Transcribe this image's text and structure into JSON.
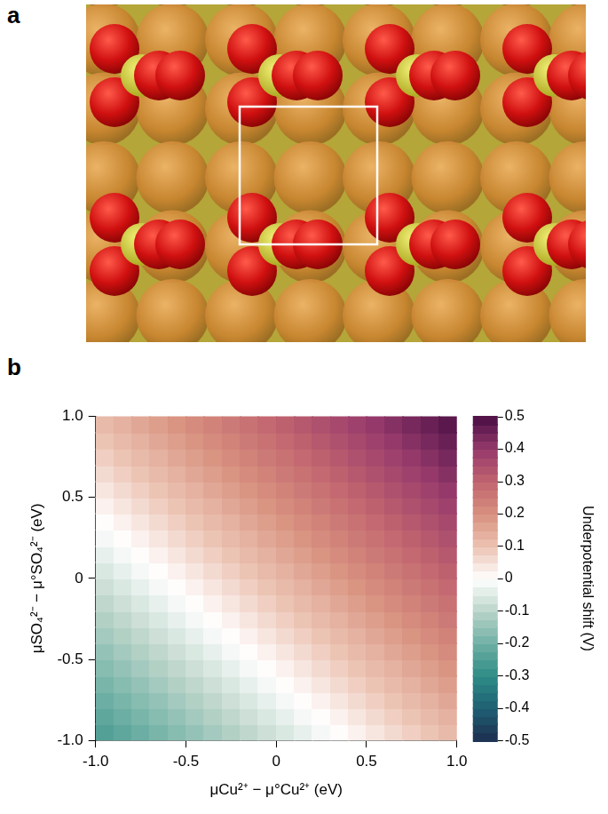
{
  "panel_labels": [
    "a",
    "b"
  ],
  "chart_data": {
    "type": "heatmap",
    "x_label": "μCu²⁺ − μ°Cu²⁺ (eV)",
    "y_label": "μSO₄²⁻ − μ°SO₄²⁻ (eV)",
    "x": [
      -0.95,
      -0.85,
      -0.75,
      -0.65,
      -0.55,
      -0.45,
      -0.35,
      -0.25,
      -0.15,
      -0.05,
      0.05,
      0.15,
      0.25,
      0.35,
      0.45,
      0.55,
      0.65,
      0.75,
      0.85,
      0.95
    ],
    "y": [
      -0.95,
      -0.85,
      -0.75,
      -0.65,
      -0.55,
      -0.45,
      -0.35,
      -0.25,
      -0.15,
      -0.05,
      0.05,
      0.15,
      0.25,
      0.35,
      0.45,
      0.55,
      0.65,
      0.75,
      0.85,
      0.95
    ],
    "cells": [
      [
        -0.243,
        -0.224,
        -0.205,
        -0.186,
        -0.167,
        -0.148,
        -0.129,
        -0.11,
        -0.091,
        -0.072,
        -0.053,
        -0.034,
        -0.015,
        0.004,
        0.023,
        0.042,
        0.061,
        0.08,
        0.099,
        0.118
      ],
      [
        -0.224,
        -0.205,
        -0.186,
        -0.167,
        -0.148,
        -0.129,
        -0.11,
        -0.091,
        -0.072,
        -0.053,
        -0.034,
        -0.015,
        0.004,
        0.023,
        0.042,
        0.061,
        0.08,
        0.099,
        0.118,
        0.137
      ],
      [
        -0.205,
        -0.186,
        -0.167,
        -0.148,
        -0.129,
        -0.11,
        -0.091,
        -0.072,
        -0.053,
        -0.034,
        -0.015,
        0.004,
        0.023,
        0.042,
        0.061,
        0.08,
        0.099,
        0.118,
        0.137,
        0.156
      ],
      [
        -0.186,
        -0.167,
        -0.148,
        -0.129,
        -0.11,
        -0.091,
        -0.072,
        -0.053,
        -0.034,
        -0.015,
        0.004,
        0.023,
        0.042,
        0.061,
        0.08,
        0.099,
        0.118,
        0.137,
        0.156,
        0.175
      ],
      [
        -0.167,
        -0.148,
        -0.129,
        -0.11,
        -0.091,
        -0.072,
        -0.053,
        -0.034,
        -0.015,
        0.004,
        0.023,
        0.042,
        0.061,
        0.08,
        0.099,
        0.118,
        0.137,
        0.156,
        0.175,
        0.194
      ],
      [
        -0.148,
        -0.129,
        -0.11,
        -0.091,
        -0.072,
        -0.053,
        -0.034,
        -0.015,
        0.004,
        0.023,
        0.042,
        0.061,
        0.08,
        0.099,
        0.118,
        0.137,
        0.156,
        0.175,
        0.194,
        0.213
      ],
      [
        -0.129,
        -0.11,
        -0.091,
        -0.072,
        -0.053,
        -0.034,
        -0.015,
        0.004,
        0.023,
        0.042,
        0.061,
        0.08,
        0.099,
        0.118,
        0.137,
        0.156,
        0.175,
        0.194,
        0.213,
        0.232
      ],
      [
        -0.11,
        -0.091,
        -0.072,
        -0.053,
        -0.034,
        -0.015,
        0.004,
        0.023,
        0.042,
        0.061,
        0.08,
        0.099,
        0.118,
        0.137,
        0.156,
        0.175,
        0.194,
        0.213,
        0.232,
        0.251
      ],
      [
        -0.091,
        -0.072,
        -0.053,
        -0.034,
        -0.015,
        0.004,
        0.023,
        0.042,
        0.061,
        0.08,
        0.099,
        0.118,
        0.137,
        0.156,
        0.175,
        0.194,
        0.213,
        0.232,
        0.251,
        0.27
      ],
      [
        -0.072,
        -0.053,
        -0.034,
        -0.015,
        0.004,
        0.023,
        0.042,
        0.061,
        0.08,
        0.099,
        0.118,
        0.137,
        0.156,
        0.175,
        0.194,
        0.213,
        0.232,
        0.251,
        0.27,
        0.289
      ],
      [
        -0.053,
        -0.034,
        -0.015,
        0.004,
        0.023,
        0.042,
        0.061,
        0.08,
        0.099,
        0.118,
        0.137,
        0.156,
        0.175,
        0.194,
        0.213,
        0.232,
        0.251,
        0.27,
        0.289,
        0.308
      ],
      [
        -0.034,
        -0.015,
        0.004,
        0.023,
        0.042,
        0.061,
        0.08,
        0.099,
        0.118,
        0.137,
        0.156,
        0.175,
        0.194,
        0.213,
        0.232,
        0.251,
        0.27,
        0.289,
        0.308,
        0.327
      ],
      [
        -0.015,
        0.004,
        0.023,
        0.042,
        0.061,
        0.08,
        0.099,
        0.118,
        0.137,
        0.156,
        0.175,
        0.194,
        0.213,
        0.232,
        0.251,
        0.27,
        0.289,
        0.308,
        0.327,
        0.346
      ],
      [
        0.004,
        0.023,
        0.042,
        0.061,
        0.08,
        0.099,
        0.118,
        0.137,
        0.156,
        0.175,
        0.194,
        0.213,
        0.232,
        0.251,
        0.27,
        0.289,
        0.308,
        0.327,
        0.346,
        0.365
      ],
      [
        0.023,
        0.042,
        0.061,
        0.08,
        0.099,
        0.118,
        0.137,
        0.156,
        0.175,
        0.194,
        0.213,
        0.232,
        0.251,
        0.27,
        0.289,
        0.308,
        0.327,
        0.346,
        0.365,
        0.384
      ],
      [
        0.042,
        0.061,
        0.08,
        0.099,
        0.118,
        0.137,
        0.156,
        0.175,
        0.194,
        0.213,
        0.232,
        0.251,
        0.27,
        0.289,
        0.308,
        0.327,
        0.346,
        0.365,
        0.384,
        0.403
      ],
      [
        0.061,
        0.08,
        0.099,
        0.118,
        0.137,
        0.156,
        0.175,
        0.194,
        0.213,
        0.232,
        0.251,
        0.27,
        0.289,
        0.308,
        0.327,
        0.346,
        0.365,
        0.384,
        0.403,
        0.422
      ],
      [
        0.08,
        0.099,
        0.118,
        0.137,
        0.156,
        0.175,
        0.194,
        0.213,
        0.232,
        0.251,
        0.27,
        0.289,
        0.308,
        0.327,
        0.346,
        0.365,
        0.384,
        0.403,
        0.422,
        0.441
      ],
      [
        0.099,
        0.118,
        0.137,
        0.156,
        0.175,
        0.194,
        0.213,
        0.232,
        0.251,
        0.27,
        0.289,
        0.308,
        0.327,
        0.346,
        0.365,
        0.384,
        0.403,
        0.422,
        0.441,
        0.46
      ],
      [
        0.118,
        0.137,
        0.156,
        0.175,
        0.194,
        0.213,
        0.232,
        0.251,
        0.27,
        0.289,
        0.308,
        0.327,
        0.346,
        0.365,
        0.384,
        0.403,
        0.422,
        0.441,
        0.46,
        0.479
      ]
    ],
    "xlim": [
      -1,
      1
    ],
    "ylim": [
      -1,
      1
    ],
    "xticks": [
      {
        "value": -1,
        "label": "-1.0"
      },
      -0.5,
      0,
      0.5,
      {
        "value": 1,
        "label": "1.0"
      }
    ],
    "yticks": [
      {
        "value": -1,
        "label": "-1.0"
      },
      -0.5,
      0,
      0.5,
      {
        "value": 1,
        "label": "1.0"
      }
    ],
    "grid": false,
    "colorbar": {
      "label": "Underpotential shift (V)",
      "range": [
        -0.5,
        0.5
      ],
      "ticks": [
        -0.5,
        -0.4,
        -0.3,
        -0.2,
        -0.1,
        0,
        0.1,
        0.2,
        0.3,
        0.4,
        0.5
      ]
    }
  }
}
